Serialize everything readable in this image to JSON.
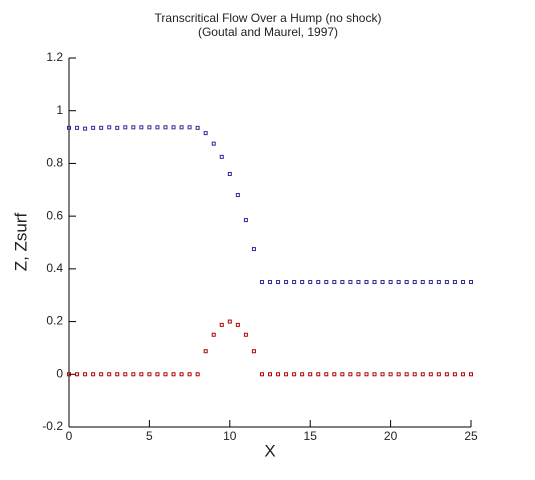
{
  "chart_data": {
    "type": "scatter",
    "title": "Transcritical Flow Over a Hump (no shock)",
    "subtitle": "(Goutal and Maurel, 1997)",
    "x_label": "X",
    "y_label": "Z, Zsurf",
    "x": [
      0,
      0.5,
      1,
      1.5,
      2,
      2.5,
      3,
      3.5,
      4,
      4.5,
      5,
      5.5,
      6,
      6.5,
      7,
      7.5,
      8,
      8.5,
      9,
      9.5,
      10,
      10.5,
      11,
      11.5,
      12,
      12.5,
      13,
      13.5,
      14,
      14.5,
      15,
      15.5,
      16,
      16.5,
      17,
      17.5,
      18,
      18.5,
      19,
      19.5,
      20,
      20.5,
      21,
      21.5,
      22,
      22.5,
      23,
      23.5,
      24,
      24.5,
      25
    ],
    "series": [
      {
        "color": "#2a2a9a",
        "values": [
          0.935,
          0.935,
          0.932,
          0.935,
          0.935,
          0.937,
          0.935,
          0.937,
          0.937,
          0.937,
          0.937,
          0.937,
          0.937,
          0.937,
          0.937,
          0.937,
          0.935,
          0.915,
          0.875,
          0.825,
          0.76,
          0.68,
          0.585,
          0.475,
          0.35,
          0.35,
          0.35,
          0.35,
          0.35,
          0.35,
          0.35,
          0.35,
          0.35,
          0.35,
          0.35,
          0.35,
          0.35,
          0.35,
          0.35,
          0.35,
          0.35,
          0.35,
          0.35,
          0.35,
          0.35,
          0.35,
          0.35,
          0.35,
          0.35,
          0.35,
          0.35
        ]
      },
      {
        "color": "#b00000",
        "values": [
          0,
          0,
          0,
          0,
          0,
          0,
          0,
          0,
          0,
          0,
          0,
          0,
          0,
          0,
          0,
          0,
          0,
          0.0875,
          0.15,
          0.1875,
          0.2,
          0.1875,
          0.15,
          0.0875,
          0,
          0,
          0,
          0,
          0,
          0,
          0,
          0,
          0,
          0,
          0,
          0,
          0,
          0,
          0,
          0,
          0,
          0,
          0,
          0,
          0,
          0,
          0,
          0,
          0,
          0,
          0
        ]
      }
    ],
    "xlim": [
      0,
      25
    ],
    "ylim": [
      -0.2,
      1.2
    ],
    "xticks": [
      0,
      5,
      10,
      15,
      20,
      25
    ],
    "yticks": [
      -0.2,
      0,
      0.2,
      0.4,
      0.6,
      0.8,
      1,
      1.2
    ]
  }
}
